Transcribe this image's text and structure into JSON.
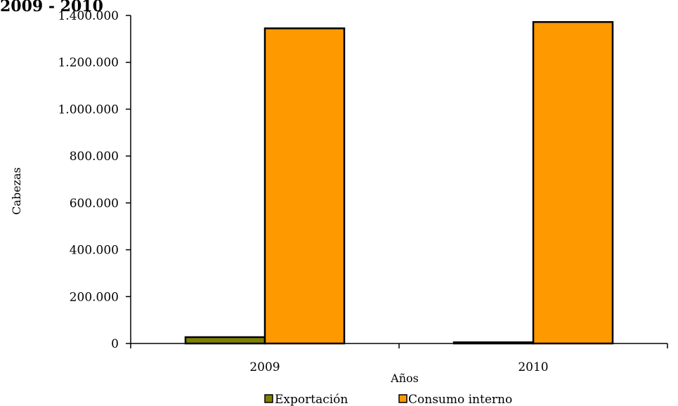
{
  "chart_data": {
    "type": "bar",
    "title": "2009 - 2010",
    "xlabel": "Años",
    "ylabel": "Cabezas",
    "categories": [
      "2009",
      "2010"
    ],
    "series": [
      {
        "name": "Exportación",
        "color": "#808000",
        "values": [
          27000,
          5000
        ]
      },
      {
        "name": "Consumo interno",
        "color": "#FF9900",
        "values": [
          1345000,
          1372000
        ]
      }
    ],
    "ylim": [
      0,
      1400000
    ],
    "yticks": [
      0,
      200000,
      400000,
      600000,
      800000,
      1000000,
      1200000,
      1400000
    ],
    "ytick_labels": [
      "0",
      "200.000",
      "400.000",
      "600.000",
      "800.000",
      "1.000.000",
      "1.200.000",
      "1.400.000"
    ],
    "grid": false,
    "legend_position": "bottom"
  }
}
